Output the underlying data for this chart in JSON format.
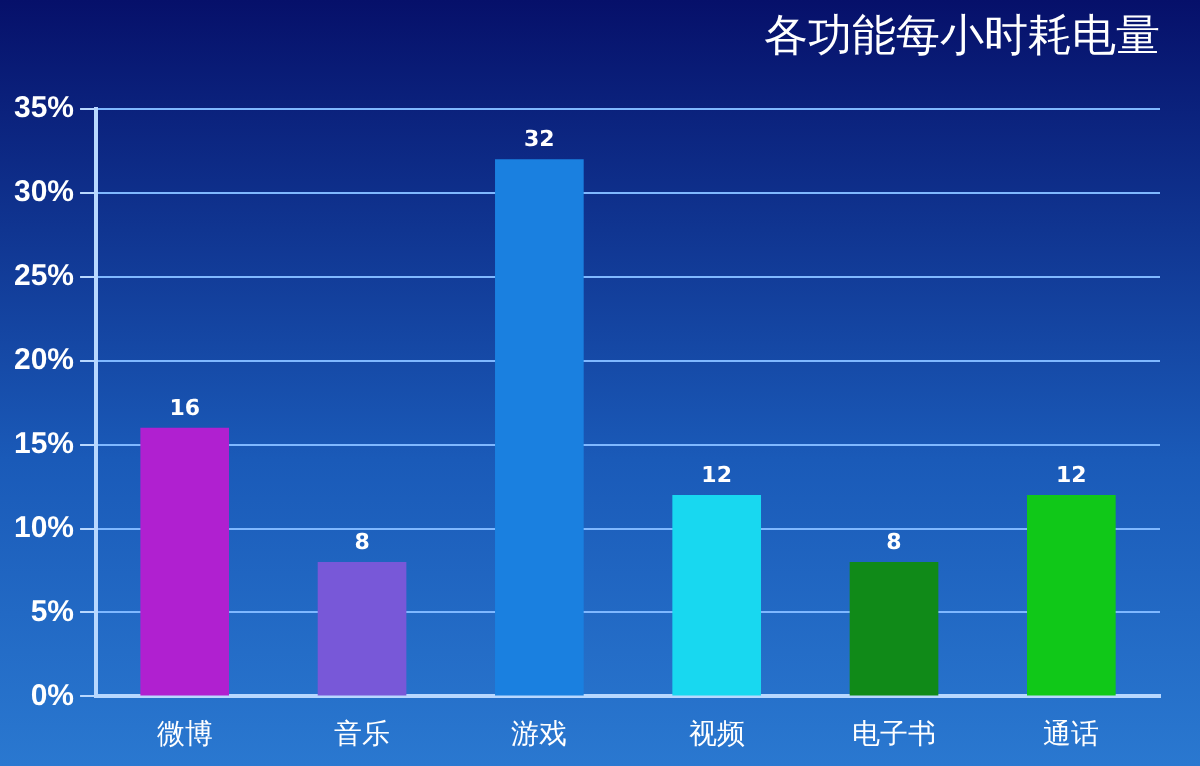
{
  "chart_data": {
    "type": "bar",
    "title": "各功能每小时耗电量",
    "categories": [
      "微博",
      "音乐",
      "游戏",
      "视频",
      "电子书",
      "通话"
    ],
    "values": [
      16,
      8,
      32,
      12,
      8,
      12
    ],
    "colors": [
      "#b020d0",
      "#7858d8",
      "#1a80e0",
      "#18d8f0",
      "#108a18",
      "#10c818"
    ],
    "ylim": [
      0,
      35
    ],
    "yticks": [
      {
        "value": 0,
        "label": "0%"
      },
      {
        "value": 5,
        "label": "5%"
      },
      {
        "value": 10,
        "label": "10%"
      },
      {
        "value": 15,
        "label": "15%"
      },
      {
        "value": 20,
        "label": "20%"
      },
      {
        "value": 25,
        "label": "25%"
      },
      {
        "value": 30,
        "label": "30%"
      },
      {
        "value": 35,
        "label": "35%"
      }
    ],
    "grid": "y",
    "data_labels": true,
    "legend": false
  }
}
